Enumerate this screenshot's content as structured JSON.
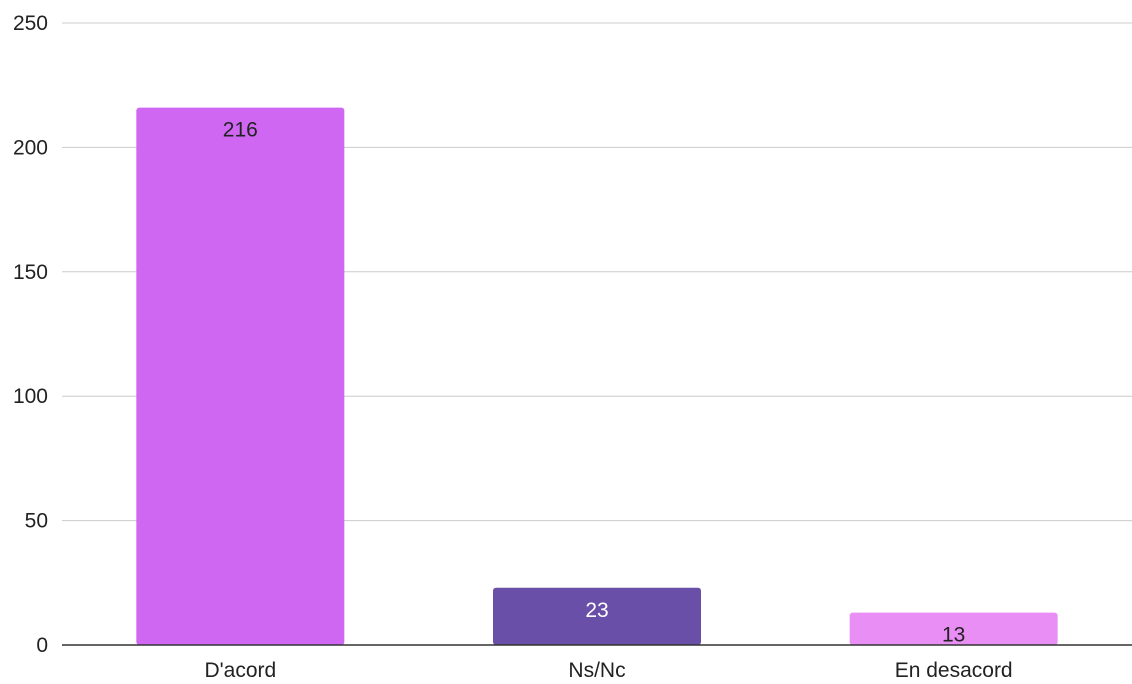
{
  "chart_data": {
    "type": "bar",
    "categories": [
      "D'acord",
      "Ns/Nc",
      "En desacord"
    ],
    "values": [
      216,
      23,
      13
    ],
    "colors": [
      "#cf67f2",
      "#6a4fa8",
      "#e88ef5"
    ],
    "data_label_colors": [
      "#222222",
      "#ffffff",
      "#222222"
    ],
    "ylim": [
      0,
      250
    ],
    "yticks": [
      0,
      50,
      100,
      150,
      200,
      250
    ],
    "grid": true,
    "title": "",
    "xlabel": "",
    "ylabel": ""
  }
}
